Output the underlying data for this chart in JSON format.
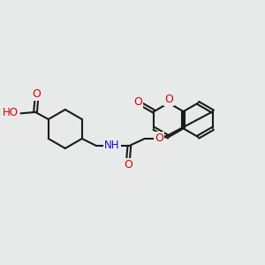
{
  "bg_color": "#e8eaea",
  "bond_color": "#1a1a1a",
  "bond_width": 1.5,
  "atom_colors": {
    "O": "#dd0000",
    "N": "#1010cc",
    "H": "#888888",
    "C": "#1a1a1a"
  },
  "font_size": 8.5
}
